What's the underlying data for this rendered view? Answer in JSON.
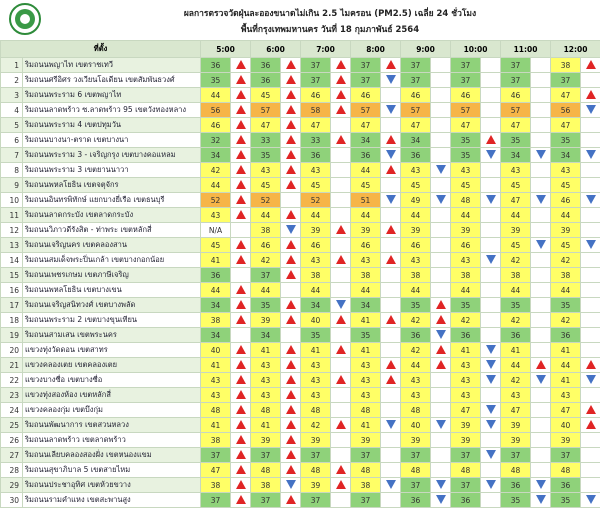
{
  "header": {
    "title": "ผลการตรวจวัดฝุ่นละอองขนาดไม่เกิน 2.5 ไมครอน (PM2.5) เฉลี่ย 24 ชั่วโมง",
    "subtitle": "พื้นที่กรุงเทพมหานคร วันที่ 18 กุมภาพันธ์ 2564"
  },
  "table": {
    "location_header": "ที่ตั้ง",
    "times": [
      "5:00",
      "6:00",
      "7:00",
      "8:00",
      "9:00",
      "10:00",
      "11:00",
      "12:00"
    ],
    "rows": [
      {
        "no": 1,
        "name": "ริมถนนพญาไท เขตราชเทวี",
        "values": [
          36,
          36,
          37,
          37,
          37,
          37,
          37,
          38
        ],
        "trends": [
          "up",
          "up",
          "up",
          "up",
          null,
          null,
          null,
          "up"
        ]
      },
      {
        "no": 2,
        "name": "ริมถนนศรีอิศร วงเวียนโอเดียน เขตสัมพันธวงศ์",
        "values": [
          35,
          36,
          37,
          37,
          37,
          37,
          37,
          37
        ],
        "trends": [
          "up",
          "up",
          "up",
          "down",
          null,
          null,
          null,
          null
        ]
      },
      {
        "no": 3,
        "name": "ริมถนนพระราม 6 เขตพญาไท",
        "values": [
          44,
          45,
          46,
          46,
          46,
          46,
          46,
          47
        ],
        "trends": [
          "up",
          "up",
          "up",
          null,
          null,
          null,
          null,
          "up"
        ]
      },
      {
        "no": 4,
        "name": "ริมถนนลาดพร้าว ซ.ลาดพร้าว 95 เขตวังทองหลาง",
        "values": [
          56,
          57,
          58,
          57,
          57,
          57,
          57,
          56
        ],
        "trends": [
          "up",
          "up",
          "up",
          "down",
          null,
          null,
          null,
          "down"
        ]
      },
      {
        "no": 5,
        "name": "ริมถนนพระราม 4 เขตปทุมวัน",
        "values": [
          46,
          47,
          47,
          47,
          47,
          47,
          47,
          47
        ],
        "trends": [
          "up",
          "up",
          null,
          null,
          null,
          null,
          null,
          null
        ]
      },
      {
        "no": 6,
        "name": "ริมถนนบางนา-ตราด เขตบางนา",
        "values": [
          32,
          33,
          33,
          34,
          34,
          35,
          35,
          35
        ],
        "trends": [
          "up",
          "up",
          "up",
          "up",
          null,
          "up",
          null,
          null
        ]
      },
      {
        "no": 7,
        "name": "ริมถนนพระราม 3 - เจริญกรุง เขตบางคอแหลม",
        "values": [
          34,
          35,
          36,
          36,
          36,
          35,
          34,
          34
        ],
        "trends": [
          "up",
          "up",
          null,
          "down",
          null,
          "down",
          "down",
          "down"
        ]
      },
      {
        "no": 8,
        "name": "ริมถนนพระราม 3 เขตยานนาวา",
        "values": [
          42,
          43,
          43,
          44,
          43,
          43,
          43,
          43
        ],
        "trends": [
          "up",
          "up",
          null,
          "up",
          "down",
          null,
          null,
          null
        ]
      },
      {
        "no": 9,
        "name": "ริมถนนพหลโยธิน เขตจตุจักร",
        "values": [
          44,
          45,
          45,
          45,
          45,
          45,
          45,
          45
        ],
        "trends": [
          "up",
          "up",
          null,
          null,
          null,
          null,
          null,
          null
        ]
      },
      {
        "no": 10,
        "name": "ริมถนนอินทรพิทักษ์ แยกบางยี่เรือ เขตธนบุรี",
        "values": [
          52,
          52,
          52,
          51,
          49,
          48,
          47,
          46
        ],
        "trends": [
          "up",
          null,
          null,
          "down",
          "down",
          "down",
          "down",
          "down"
        ]
      },
      {
        "no": 11,
        "name": "ริมถนนลาดกระบัง เขตลาดกระบัง",
        "values": [
          43,
          44,
          44,
          44,
          44,
          44,
          44,
          44
        ],
        "trends": [
          "up",
          "up",
          null,
          null,
          null,
          null,
          null,
          null
        ]
      },
      {
        "no": 12,
        "name": "ริมถนนวิภาวดีรังสิต - ท่าพระ เขตหลักสี่",
        "values": [
          "N/A",
          38,
          39,
          39,
          39,
          39,
          39,
          39
        ],
        "trends": [
          null,
          "down",
          "up",
          "up",
          null,
          null,
          null,
          null
        ]
      },
      {
        "no": 13,
        "name": "ริมถนนเจริญนคร เขตคลองสาน",
        "values": [
          45,
          46,
          46,
          46,
          46,
          46,
          45,
          45
        ],
        "trends": [
          "up",
          "up",
          null,
          null,
          null,
          null,
          "down",
          "down"
        ]
      },
      {
        "no": 14,
        "name": "ริมถนนสมเด็จพระปิ่นเกล้า เขตบางกอกน้อย",
        "values": [
          41,
          42,
          43,
          43,
          43,
          43,
          42,
          42
        ],
        "trends": [
          "up",
          "up",
          "up",
          "up",
          null,
          "down",
          null,
          null
        ]
      },
      {
        "no": 15,
        "name": "ริมถนนเพชรเกษม เขตภาษีเจริญ",
        "values": [
          36,
          37,
          38,
          38,
          38,
          38,
          38,
          38
        ],
        "trends": [
          null,
          "up",
          null,
          null,
          null,
          null,
          null,
          null
        ]
      },
      {
        "no": 16,
        "name": "ริมถนนพหลโยธิน เขตบางเขน",
        "values": [
          44,
          44,
          44,
          44,
          44,
          44,
          44,
          44
        ],
        "trends": [
          "up",
          null,
          null,
          null,
          null,
          null,
          null,
          null
        ]
      },
      {
        "no": 17,
        "name": "ริมถนนเจริญสนิทวงศ์ เขตบางพลัด",
        "values": [
          34,
          35,
          34,
          34,
          35,
          35,
          35,
          35
        ],
        "trends": [
          "up",
          "up",
          "down",
          null,
          "up",
          null,
          null,
          null
        ]
      },
      {
        "no": 18,
        "name": "ริมถนนพระราม 2 เขตบางขุนเทียน",
        "values": [
          38,
          39,
          40,
          41,
          42,
          42,
          42,
          42
        ],
        "trends": [
          "up",
          "up",
          "up",
          "up",
          "up",
          null,
          null,
          null
        ]
      },
      {
        "no": 19,
        "name": "ริมถนนสามเสน เขตพระนคร",
        "values": [
          34,
          34,
          35,
          35,
          36,
          36,
          36,
          36
        ],
        "trends": [
          null,
          null,
          null,
          null,
          "down",
          null,
          null,
          null
        ]
      },
      {
        "no": 20,
        "name": "แขวงทุ่งวัดดอน เขตสาทร",
        "values": [
          40,
          41,
          41,
          41,
          42,
          41,
          41,
          41
        ],
        "trends": [
          "up",
          "up",
          "up",
          null,
          "up",
          "down",
          null,
          null
        ]
      },
      {
        "no": 21,
        "name": "แขวงคลองเตย เขตคลองเตย",
        "values": [
          41,
          43,
          43,
          43,
          44,
          43,
          44,
          44
        ],
        "trends": [
          "up",
          "up",
          null,
          "up",
          "up",
          "down",
          "up",
          "up"
        ]
      },
      {
        "no": 22,
        "name": "แขวงบางซื่อ เขตบางซื่อ",
        "values": [
          43,
          43,
          43,
          43,
          43,
          43,
          42,
          41
        ],
        "trends": [
          "up",
          "up",
          "up",
          "up",
          null,
          "down",
          "down",
          "down"
        ]
      },
      {
        "no": 23,
        "name": "แขวงทุ่งสองห้อง เขตหลักสี่",
        "values": [
          43,
          43,
          43,
          43,
          43,
          43,
          43,
          43
        ],
        "trends": [
          "up",
          "up",
          null,
          null,
          null,
          null,
          null,
          null
        ]
      },
      {
        "no": 24,
        "name": "แขวงคลองกุ่ม เขตบึงกุ่ม",
        "values": [
          48,
          48,
          48,
          48,
          48,
          47,
          47,
          47
        ],
        "trends": [
          "up",
          "up",
          null,
          null,
          null,
          "down",
          null,
          "up"
        ]
      },
      {
        "no": 25,
        "name": "ริมถนนพัฒนาการ เขตสวนหลวง",
        "values": [
          41,
          41,
          42,
          41,
          40,
          39,
          39,
          40
        ],
        "trends": [
          "up",
          "up",
          "up",
          "down",
          "down",
          "down",
          null,
          "up"
        ]
      },
      {
        "no": 26,
        "name": "ริมถนนลาดพร้าว เขตลาดพร้าว",
        "values": [
          38,
          39,
          39,
          39,
          39,
          39,
          39,
          39
        ],
        "trends": [
          "up",
          "up",
          null,
          null,
          null,
          null,
          null,
          null
        ]
      },
      {
        "no": 27,
        "name": "ริมถนนเลียบคลองสองฝั่ง เขตหนองแขม",
        "values": [
          37,
          37,
          37,
          37,
          37,
          37,
          37,
          37
        ],
        "trends": [
          "up",
          "up",
          null,
          null,
          null,
          "down",
          null,
          null
        ]
      },
      {
        "no": 28,
        "name": "ริมถนนสุขาภิบาล 5 เขตสายไหม",
        "values": [
          47,
          48,
          48,
          48,
          48,
          48,
          48,
          48
        ],
        "trends": [
          "up",
          "up",
          "up",
          null,
          null,
          null,
          null,
          null
        ]
      },
      {
        "no": 29,
        "name": "ริมถนนประชาอุทิศ เขตห้วยขวาง",
        "values": [
          38,
          38,
          39,
          38,
          37,
          37,
          36,
          36
        ],
        "trends": [
          "up",
          "down",
          "up",
          "down",
          "down",
          "down",
          "down",
          null
        ]
      },
      {
        "no": 30,
        "name": "ริมถนนรามคำแหง เขตสะพานสูง",
        "values": [
          37,
          37,
          37,
          37,
          36,
          36,
          35,
          35
        ],
        "trends": [
          "up",
          "up",
          null,
          null,
          "down",
          null,
          "down",
          "down"
        ]
      }
    ]
  }
}
